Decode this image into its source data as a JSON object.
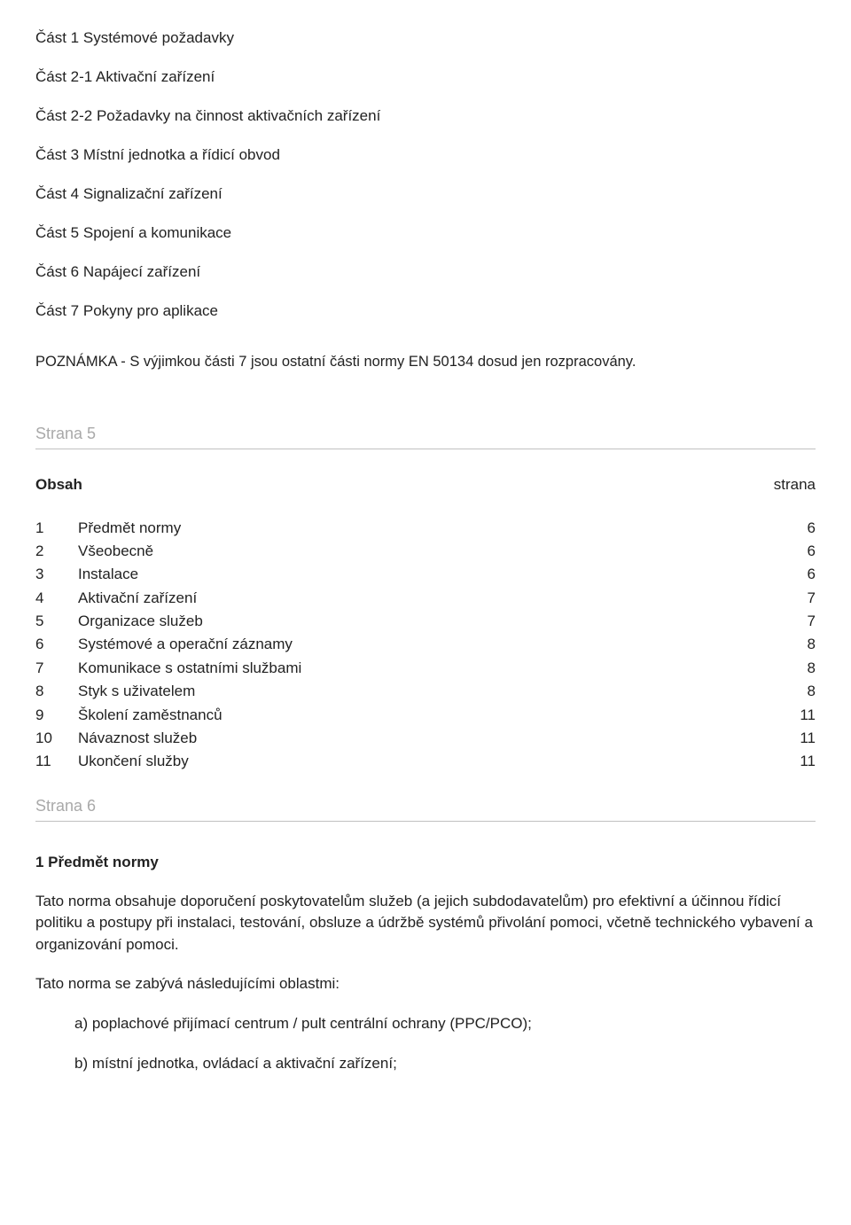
{
  "parts": [
    "Část 1 Systémové požadavky",
    "Část 2-1 Aktivační zařízení",
    "Část 2-2 Požadavky na činnost aktivačních zařízení",
    "Část 3 Místní jednotka a řídicí obvod",
    "Část 4 Signalizační zařízení",
    "Část 5 Spojení a komunikace",
    "Část 6 Napájecí zařízení",
    "Část 7 Pokyny pro aplikace"
  ],
  "note": "POZNÁMKA - S výjimkou části 7 jsou ostatní části normy EN 50134 dosud jen rozpracovány.",
  "page5": {
    "label": "Strana 5",
    "tocHeaderLeft": "Obsah",
    "tocHeaderRight": "strana",
    "rows": [
      {
        "n": "1",
        "t": "Předmět normy",
        "p": "6"
      },
      {
        "n": "2",
        "t": "Všeobecně",
        "p": "6"
      },
      {
        "n": "3",
        "t": "Instalace",
        "p": "6"
      },
      {
        "n": "4",
        "t": "Aktivační zařízení",
        "p": "7"
      },
      {
        "n": "5",
        "t": "Organizace služeb",
        "p": "7"
      },
      {
        "n": "6",
        "t": "Systémové a operační záznamy",
        "p": "8"
      },
      {
        "n": "7",
        "t": "Komunikace s ostatními službami",
        "p": "8"
      },
      {
        "n": "8",
        "t": "Styk s uživatelem",
        "p": "8"
      },
      {
        "n": "9",
        "t": "Školení zaměstnanců",
        "p": "11"
      },
      {
        "n": "10",
        "t": "Návaznost služeb",
        "p": "11"
      },
      {
        "n": "11",
        "t": "Ukončení služby",
        "p": "11"
      }
    ]
  },
  "page6": {
    "label": "Strana 6",
    "sectionHeading": "1 Předmět normy",
    "para1": "Tato norma obsahuje doporučení poskytovatelům služeb (a jejich subdodavatelům) pro efektivní a účinnou řídicí politiku a postupy při instalaci, testování, obsluze a údržbě systémů přivolání pomoci, včetně technického vybavení a organizování pomoci.",
    "para2": "Tato norma se zabývá následujícími oblastmi:",
    "items": [
      "a) poplachové přijímací centrum / pult centrální ochrany (PPC/PCO);",
      "b) místní jednotka, ovládací a aktivační zařízení;"
    ]
  }
}
